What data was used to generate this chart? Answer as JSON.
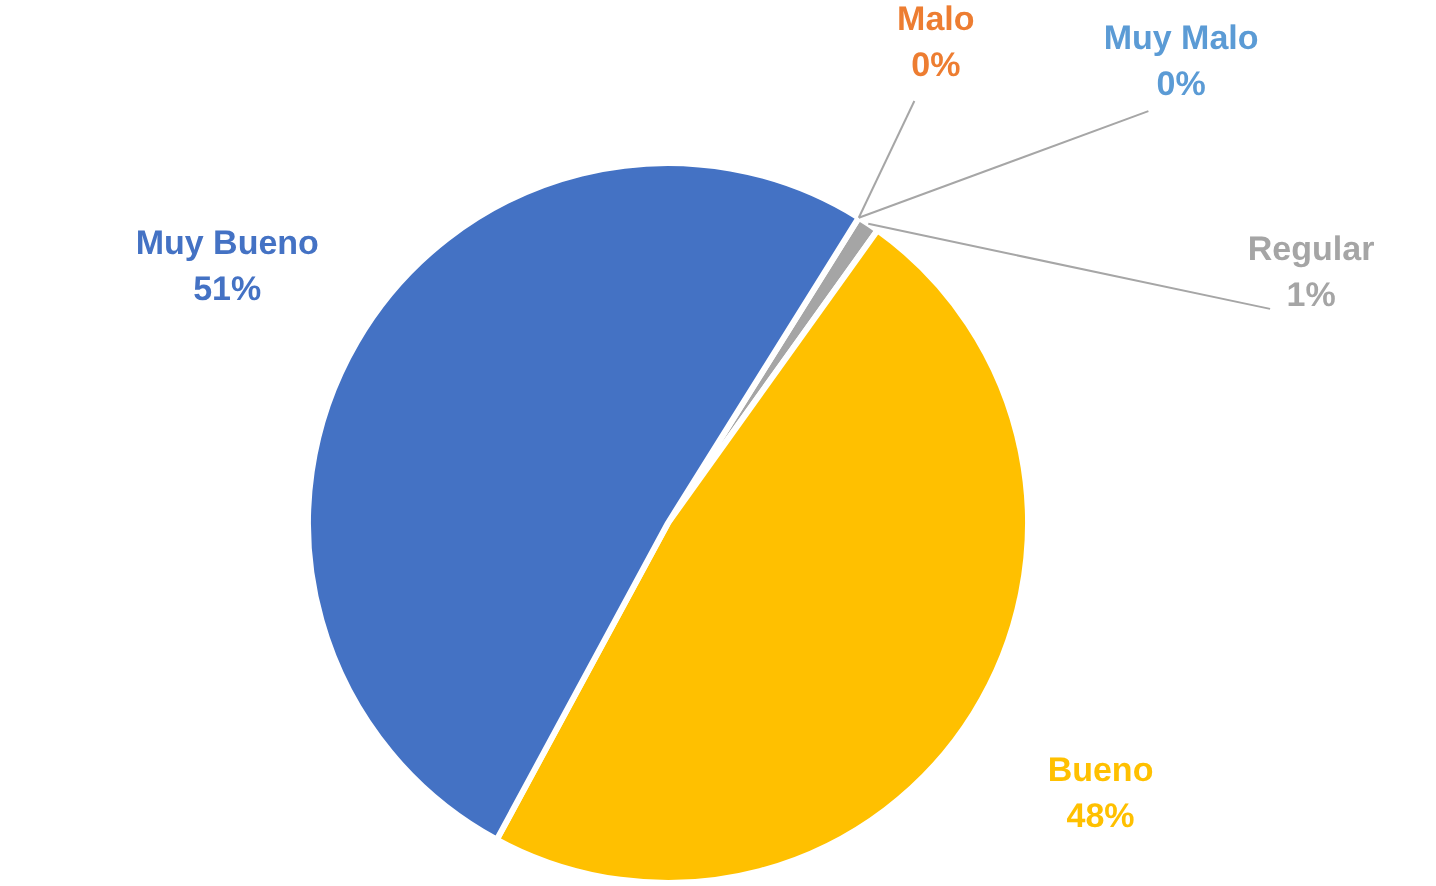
{
  "chart_data": {
    "type": "pie",
    "categories": [
      "Malo",
      "Muy Malo",
      "Regular",
      "Bueno",
      "Muy Bueno"
    ],
    "values": [
      0,
      0,
      1,
      48,
      51
    ],
    "colors": [
      "#ed7d31",
      "#5b9bd5",
      "#a5a5a5",
      "#ffc000",
      "#4472c4"
    ],
    "value_labels": [
      "0%",
      "0%",
      "1%",
      "48%",
      "51%"
    ],
    "legend": false
  }
}
